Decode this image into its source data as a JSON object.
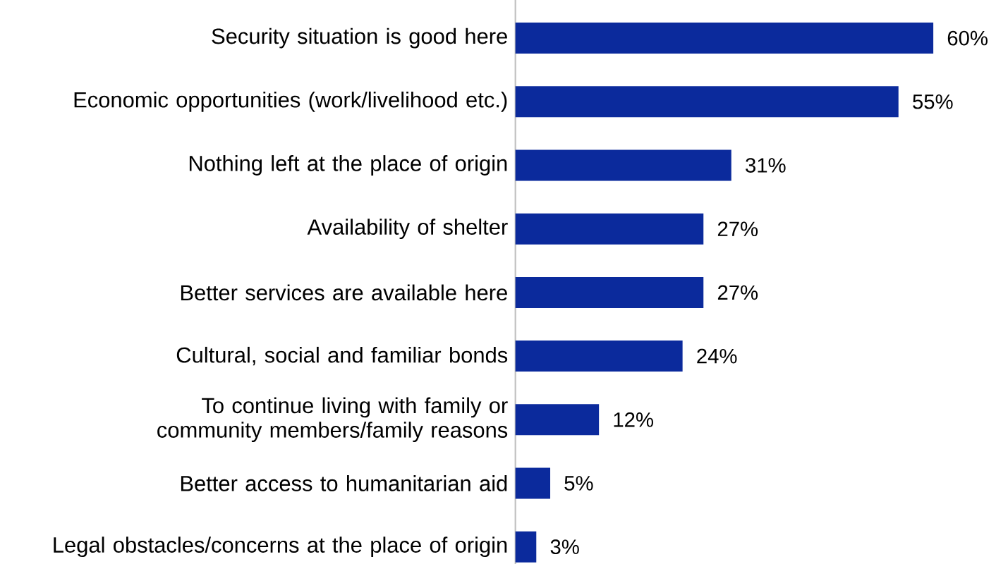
{
  "chart_data": {
    "type": "bar",
    "orientation": "horizontal",
    "color": "#0b2a9c",
    "categories": [
      "Security situation is good here",
      "Economic opportunities (work/livelihood etc.)",
      "Nothing left at the place of origin",
      "Availability of shelter",
      "Better services are available here",
      "Cultural, social and familiar bonds",
      "To continue living with family or community members/family reasons",
      "Better access to humanitarian aid",
      "Legal obstacles/concerns at the place of origin"
    ],
    "values": [
      60,
      55,
      31,
      27,
      27,
      24,
      12,
      5,
      3
    ],
    "value_labels": [
      "60%",
      "55%",
      "31%",
      "27%",
      "27%",
      "24%",
      "12%",
      "5%",
      "3%"
    ]
  }
}
